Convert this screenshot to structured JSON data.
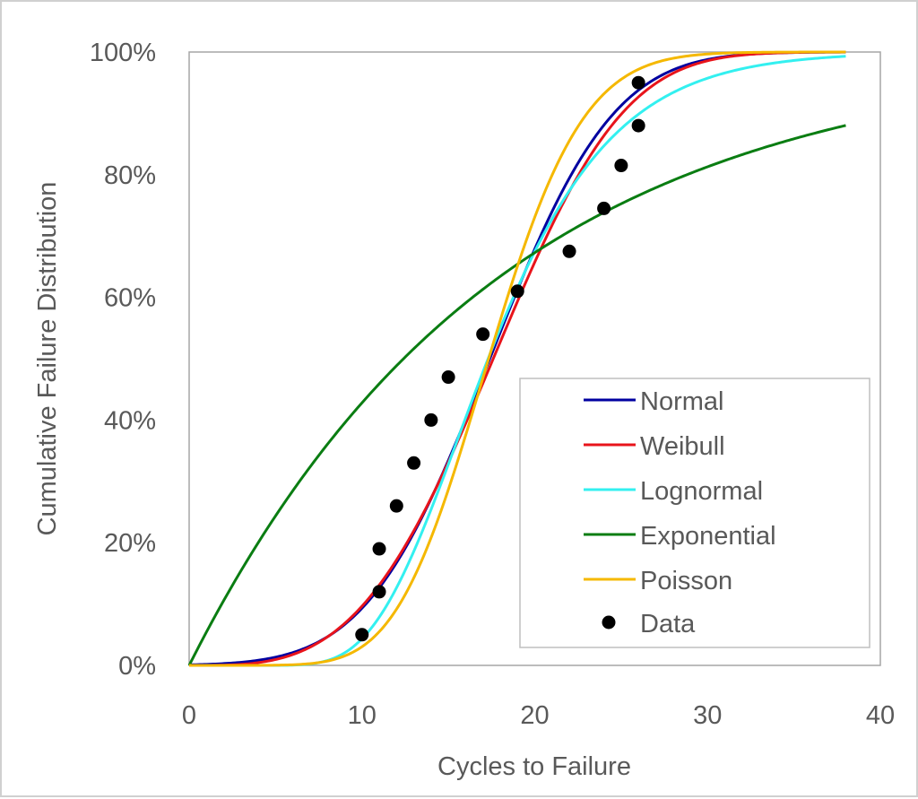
{
  "chart_data": {
    "type": "line",
    "title": "",
    "xlabel": "Cycles to Failure",
    "ylabel": "Cumulative Failure Distribution",
    "xlim": [
      0,
      40
    ],
    "ylim": [
      0,
      100
    ],
    "x_ticks": [
      "0",
      "10",
      "20",
      "30",
      "40"
    ],
    "y_ticks": [
      "0%",
      "20%",
      "40%",
      "60%",
      "80%",
      "100%"
    ],
    "grid": false,
    "legend_position": "bottom-right",
    "series": [
      {
        "name": "Normal",
        "color": "#0000A0",
        "distribution": "normal",
        "params": {
          "mean": 17.4,
          "sd": 5.6
        },
        "x_range": [
          0,
          38
        ]
      },
      {
        "name": "Weibull",
        "color": "#E8141B",
        "distribution": "weibull",
        "params": {
          "shape": 3.4,
          "scale": 19.6
        },
        "x_range": [
          0,
          38
        ]
      },
      {
        "name": "Lognormal",
        "color": "#33F0F0",
        "distribution": "lognormal",
        "params": {
          "median": 17.3,
          "sigma": 0.32
        },
        "x_range": [
          0,
          38
        ]
      },
      {
        "name": "Exponential",
        "color": "#0A7D12",
        "distribution": "exponential",
        "params": {
          "mean": 17.9
        },
        "x_range": [
          0,
          38
        ]
      },
      {
        "name": "Poisson",
        "color": "#F5B800",
        "distribution": "poisson",
        "params": {
          "lambda": 18
        },
        "x_range": [
          0,
          38
        ]
      }
    ],
    "points": {
      "name": "Data",
      "color": "#000000",
      "x": [
        10,
        11,
        11,
        12,
        13,
        14,
        15,
        17,
        19,
        22,
        24,
        25,
        26,
        26
      ],
      "y": [
        5,
        12,
        19,
        26,
        33,
        40,
        47,
        54,
        61,
        67.5,
        74.5,
        81.5,
        88,
        95
      ]
    }
  }
}
